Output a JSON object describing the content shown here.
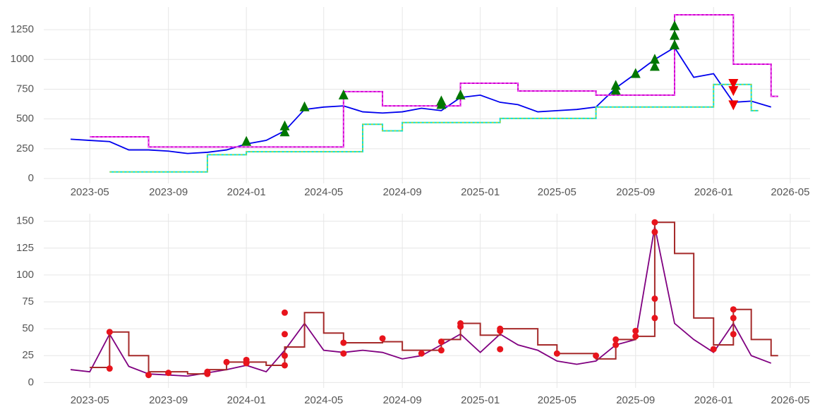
{
  "chart_data": [
    {
      "type": "line",
      "grid": true,
      "xlim": [
        "2023-03",
        "2026-06"
      ],
      "ylim": [
        -41,
        1440
      ],
      "xticks": [
        "2023-05",
        "2023-09",
        "2024-01",
        "2024-05",
        "2024-09",
        "2025-01",
        "2025-05",
        "2025-09",
        "2026-01",
        "2026-05"
      ],
      "yticks": [
        0,
        250,
        500,
        750,
        1000,
        1250
      ],
      "series": [
        {
          "style": "line",
          "color": "#0000ee",
          "x": [
            "2023-04",
            "2023-05",
            "2023-06",
            "2023-07",
            "2023-08",
            "2023-09",
            "2023-10",
            "2023-11",
            "2023-12",
            "2024-01",
            "2024-02",
            "2024-03",
            "2024-04",
            "2024-05",
            "2024-06",
            "2024-07",
            "2024-08",
            "2024-09",
            "2024-10",
            "2024-11",
            "2024-12",
            "2025-01",
            "2025-02",
            "2025-03",
            "2025-04",
            "2025-05",
            "2025-06",
            "2025-07",
            "2025-08",
            "2025-09",
            "2025-10",
            "2025-11",
            "2025-12",
            "2026-01",
            "2026-02",
            "2026-03",
            "2026-04"
          ],
          "values": [
            330,
            320,
            310,
            240,
            240,
            230,
            210,
            220,
            240,
            290,
            320,
            400,
            580,
            600,
            610,
            560,
            550,
            560,
            590,
            570,
            680,
            700,
            640,
            620,
            560,
            570,
            580,
            600,
            760,
            880,
            1000,
            1100,
            850,
            880,
            640,
            650,
            600
          ]
        },
        {
          "style": "steps",
          "color": "#cc00cc",
          "dash_color": "#ff66ff",
          "x": [
            "2023-05",
            "2023-08",
            "2024-06",
            "2024-08",
            "2024-12",
            "2025-03",
            "2025-07",
            "2025-11",
            "2026-02",
            "2026-04"
          ],
          "values": [
            350,
            265,
            730,
            610,
            800,
            735,
            700,
            1375,
            960,
            690
          ]
        },
        {
          "style": "steps",
          "color": "#00e0e0",
          "dash_color": "#e0d000",
          "x": [
            "2023-06",
            "2023-11",
            "2024-01",
            "2024-07",
            "2024-08",
            "2024-09",
            "2025-02",
            "2025-07",
            "2026-01",
            "2026-03"
          ],
          "values": [
            55,
            200,
            225,
            455,
            400,
            470,
            505,
            600,
            790,
            570
          ]
        },
        {
          "style": "marker-up",
          "color": "#007700",
          "x": [
            "2024-01",
            "2024-03",
            "2024-03",
            "2024-04",
            "2024-06",
            "2024-11",
            "2024-11",
            "2024-12",
            "2025-08",
            "2025-08",
            "2025-09",
            "2025-10",
            "2025-10",
            "2025-11",
            "2025-11",
            "2025-11"
          ],
          "values": [
            310,
            390,
            440,
            600,
            700,
            620,
            650,
            700,
            780,
            740,
            880,
            940,
            1000,
            1200,
            1280,
            1120
          ]
        },
        {
          "style": "marker-down",
          "color": "#ee0000",
          "x": [
            "2026-02",
            "2026-02",
            "2026-02"
          ],
          "values": [
            800,
            740,
            620
          ]
        }
      ]
    },
    {
      "type": "line",
      "grid": true,
      "xlim": [
        "2023-03",
        "2026-06"
      ],
      "ylim": [
        -5,
        157
      ],
      "xticks": [
        "2023-05",
        "2023-09",
        "2024-01",
        "2024-05",
        "2024-09",
        "2025-01",
        "2025-05",
        "2025-09",
        "2026-01",
        "2026-05"
      ],
      "yticks": [
        0,
        25,
        50,
        75,
        100,
        125,
        150
      ],
      "series": [
        {
          "style": "line",
          "color": "#800080",
          "x": [
            "2023-04",
            "2023-05",
            "2023-06",
            "2023-07",
            "2023-08",
            "2023-09",
            "2023-10",
            "2023-11",
            "2023-12",
            "2024-01",
            "2024-02",
            "2024-03",
            "2024-04",
            "2024-05",
            "2024-06",
            "2024-07",
            "2024-08",
            "2024-09",
            "2024-10",
            "2024-11",
            "2024-12",
            "2025-01",
            "2025-02",
            "2025-03",
            "2025-04",
            "2025-05",
            "2025-06",
            "2025-07",
            "2025-08",
            "2025-09",
            "2025-10",
            "2025-11",
            "2025-12",
            "2026-01",
            "2026-02",
            "2026-03",
            "2026-04"
          ],
          "values": [
            12,
            10,
            45,
            15,
            8,
            7,
            6,
            9,
            12,
            16,
            10,
            30,
            55,
            30,
            28,
            30,
            28,
            22,
            25,
            35,
            45,
            28,
            45,
            35,
            30,
            20,
            17,
            20,
            35,
            40,
            145,
            55,
            40,
            28,
            55,
            25,
            18
          ]
        },
        {
          "style": "steps",
          "color": "#a52a2a",
          "x": [
            "2023-05",
            "2023-06",
            "2023-07",
            "2023-08",
            "2023-10",
            "2023-11",
            "2023-12",
            "2024-02",
            "2024-03",
            "2024-04",
            "2024-05",
            "2024-06",
            "2024-08",
            "2024-09",
            "2024-11",
            "2024-12",
            "2025-01",
            "2025-02",
            "2025-04",
            "2025-05",
            "2025-07",
            "2025-08",
            "2025-09",
            "2025-10",
            "2025-11",
            "2025-12",
            "2026-01",
            "2026-02",
            "2026-03",
            "2026-04"
          ],
          "values": [
            14,
            47,
            25,
            10,
            8,
            12,
            19,
            16,
            33,
            65,
            46,
            37,
            38,
            30,
            40,
            55,
            44,
            50,
            35,
            27,
            22,
            40,
            43,
            149,
            120,
            60,
            35,
            68,
            40,
            25
          ]
        },
        {
          "style": "dot",
          "color": "#e8141c",
          "x": [
            "2023-06",
            "2023-06",
            "2023-08",
            "2023-09",
            "2023-11",
            "2023-11",
            "2023-12",
            "2024-01",
            "2024-01",
            "2024-03",
            "2024-03",
            "2024-03",
            "2024-03",
            "2024-06",
            "2024-06",
            "2024-08",
            "2024-10",
            "2024-11",
            "2024-11",
            "2024-12",
            "2024-12",
            "2025-02",
            "2025-02",
            "2025-02",
            "2025-05",
            "2025-07",
            "2025-08",
            "2025-08",
            "2025-09",
            "2025-09",
            "2025-10",
            "2025-10",
            "2025-10",
            "2025-10",
            "2026-01",
            "2026-02",
            "2026-02",
            "2026-02"
          ],
          "values": [
            13,
            47,
            7,
            9,
            8,
            10,
            19,
            18,
            21,
            16,
            25,
            45,
            65,
            27,
            37,
            41,
            27,
            30,
            38,
            52,
            55,
            31,
            48,
            50,
            27,
            25,
            35,
            40,
            43,
            48,
            60,
            78,
            140,
            149,
            31,
            45,
            60,
            68
          ]
        }
      ]
    }
  ]
}
